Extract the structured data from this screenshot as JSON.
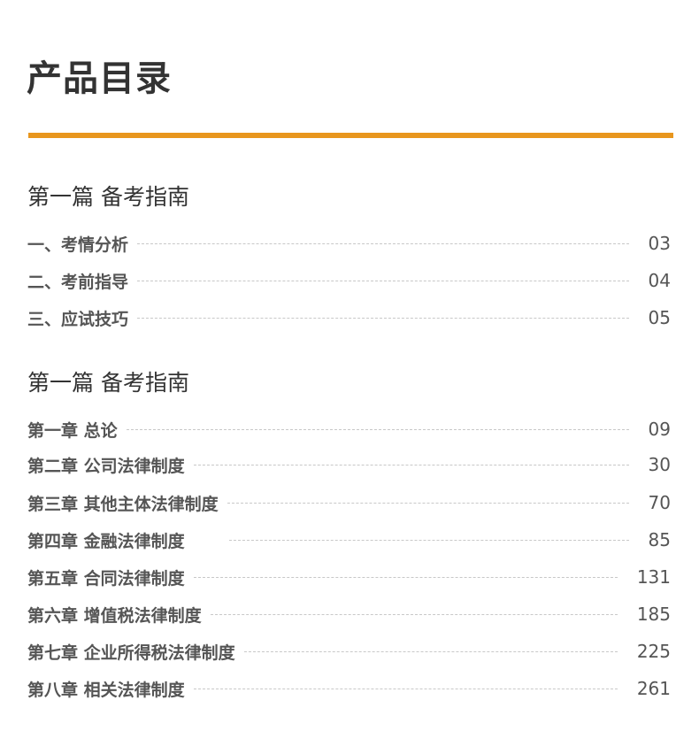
{
  "title": "产品目录",
  "accent_color": "#e8961e",
  "sections": [
    {
      "heading": "第一篇 备考指南",
      "items": [
        {
          "label": "一、考情分析",
          "page": "03"
        },
        {
          "label": "二、考前指导",
          "page": "04"
        },
        {
          "label": "三、应试技巧",
          "page": "05"
        }
      ]
    },
    {
      "heading": "第一篇 备考指南",
      "items": [
        {
          "label": "第一章  总论",
          "page": "09"
        },
        {
          "label": "第二章  公司法律制度",
          "page": "30"
        },
        {
          "label": "第三章  其他主体法律制度",
          "page": "70"
        },
        {
          "label": "第四章  金融法律制度",
          "page": "85"
        },
        {
          "label": "第五章  合同法律制度",
          "page": "131"
        },
        {
          "label": "第六章  增值税法律制度",
          "page": "185"
        },
        {
          "label": "第七章  企业所得税法律制度",
          "page": "225"
        },
        {
          "label": "第八章  相关法律制度",
          "page": "261"
        }
      ]
    }
  ]
}
